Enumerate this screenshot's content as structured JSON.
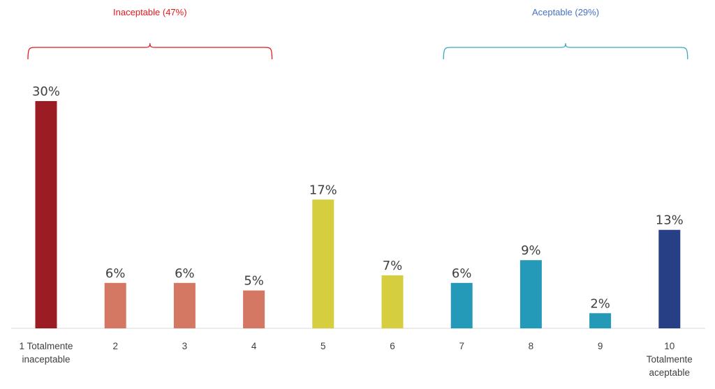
{
  "chart_data": {
    "type": "bar",
    "categories": [
      [
        "1 Totalmente",
        "inaceptable"
      ],
      [
        "2"
      ],
      [
        "3"
      ],
      [
        "4"
      ],
      [
        "5"
      ],
      [
        "6"
      ],
      [
        "7"
      ],
      [
        "8"
      ],
      [
        "9"
      ],
      [
        "10",
        "Totalmente",
        "aceptable"
      ]
    ],
    "values": [
      30,
      6,
      6,
      5,
      17,
      7,
      6,
      9,
      2,
      13
    ],
    "value_labels": [
      "30%",
      "6%",
      "6%",
      "5%",
      "17%",
      "7%",
      "6%",
      "9%",
      "2%",
      "13%"
    ],
    "colors": [
      "#9b1c22",
      "#d57863",
      "#d57863",
      "#d57863",
      "#d5ce3e",
      "#d5ce3e",
      "#2599b8",
      "#2599b8",
      "#2599b8",
      "#263f85"
    ],
    "ylim": [
      0,
      30
    ],
    "grid": false,
    "legend": "none",
    "groups": [
      {
        "label": "Inaceptable (47%)",
        "from": 0,
        "to": 3,
        "color": "#e8171b"
      },
      {
        "label": "Aceptable (29%)",
        "from": 6,
        "to": 9,
        "color": "#4472c4",
        "bracket_color": "#35a8c4"
      }
    ]
  }
}
